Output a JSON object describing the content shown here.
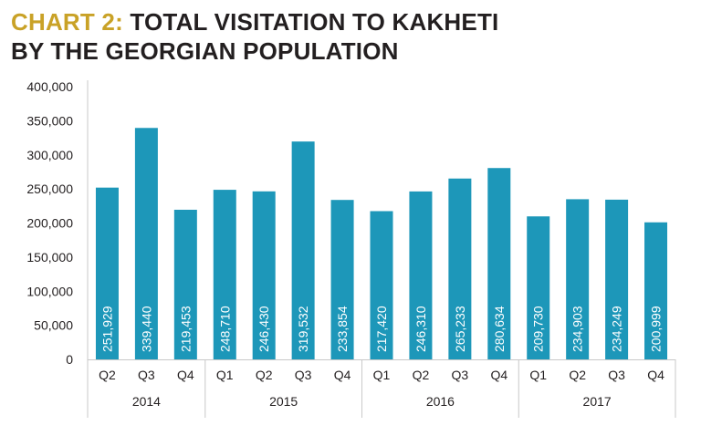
{
  "title": {
    "prefix": "CHART 2:",
    "line1": "TOTAL VISITATION TO KAKHETI",
    "line2": "BY THE GEORGIAN POPULATION"
  },
  "colors": {
    "bar": "#1d97b9",
    "accent": "#c9a227",
    "text": "#231f20",
    "axis": "#c8c8c8"
  },
  "chart_data": {
    "type": "bar",
    "title": "CHART 2: TOTAL VISITATION TO KAKHETI BY THE GEORGIAN POPULATION",
    "categories": [
      "Q2",
      "Q3",
      "Q4",
      "Q1",
      "Q2",
      "Q3",
      "Q4",
      "Q1",
      "Q2",
      "Q3",
      "Q4",
      "Q1",
      "Q2",
      "Q3",
      "Q4"
    ],
    "groups": [
      {
        "label": "2014",
        "count": 3
      },
      {
        "label": "2015",
        "count": 4
      },
      {
        "label": "2016",
        "count": 4
      },
      {
        "label": "2017",
        "count": 4
      }
    ],
    "values": [
      251929,
      339440,
      219453,
      248710,
      246430,
      319532,
      233854,
      217420,
      246310,
      265233,
      280634,
      209730,
      234903,
      234249,
      200999
    ],
    "value_labels": [
      "251,929",
      "339,440",
      "219,453",
      "248,710",
      "246,430",
      "319,532",
      "233,854",
      "217,420",
      "246,310",
      "265,233",
      "280,634",
      "209,730",
      "234,903",
      "234,249",
      "200,999"
    ],
    "ylim": [
      0,
      400000
    ],
    "yticks": [
      "0",
      "50,000",
      "100,000",
      "150,000",
      "200,000",
      "250,000",
      "300,000",
      "350,000",
      "400,000"
    ],
    "grid": false
  }
}
